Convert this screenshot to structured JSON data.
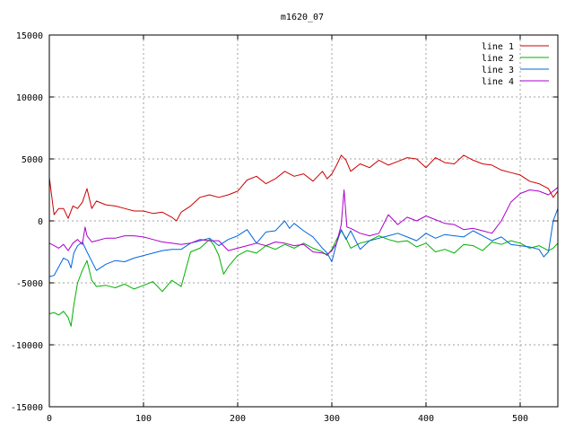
{
  "chart_data": {
    "type": "line",
    "title": "m1620_07",
    "xlabel": "",
    "ylabel": "",
    "xlim": [
      0,
      540
    ],
    "ylim": [
      -15000,
      15000
    ],
    "xticks": [
      0,
      100,
      200,
      300,
      400,
      500
    ],
    "yticks": [
      -15000,
      -10000,
      -5000,
      0,
      5000,
      10000,
      15000
    ],
    "grid": true,
    "legend_position": "top-right",
    "series": [
      {
        "name": "line 1",
        "color": "#cc0000",
        "x": [
          0,
          5,
          10,
          15,
          20,
          25,
          30,
          35,
          40,
          45,
          50,
          60,
          70,
          80,
          90,
          100,
          110,
          120,
          130,
          135,
          140,
          150,
          160,
          170,
          180,
          190,
          200,
          210,
          220,
          230,
          240,
          250,
          260,
          270,
          280,
          290,
          295,
          300,
          305,
          310,
          315,
          320,
          330,
          340,
          350,
          360,
          370,
          380,
          390,
          400,
          410,
          420,
          430,
          440,
          450,
          460,
          470,
          480,
          490,
          500,
          510,
          520,
          530,
          535,
          540
        ],
        "values": [
          3500,
          500,
          1000,
          1000,
          200,
          1200,
          1000,
          1500,
          2600,
          1000,
          1600,
          1300,
          1200,
          1000,
          800,
          800,
          600,
          700,
          300,
          0,
          700,
          1200,
          1900,
          2100,
          1900,
          2100,
          2400,
          3300,
          3600,
          3000,
          3400,
          4000,
          3600,
          3800,
          3200,
          4000,
          3400,
          3800,
          4500,
          5300,
          4900,
          4000,
          4600,
          4300,
          4900,
          4500,
          4800,
          5100,
          5000,
          4300,
          5100,
          4700,
          4600,
          5300,
          4900,
          4600,
          4500,
          4100,
          3900,
          3700,
          3200,
          3000,
          2600,
          1900,
          2400
        ]
      },
      {
        "name": "line 2",
        "color": "#00b000",
        "x": [
          0,
          5,
          10,
          15,
          20,
          23,
          26,
          30,
          35,
          40,
          45,
          50,
          60,
          70,
          80,
          90,
          100,
          110,
          120,
          130,
          140,
          150,
          160,
          170,
          175,
          180,
          185,
          190,
          200,
          210,
          220,
          230,
          240,
          250,
          260,
          270,
          280,
          290,
          295,
          300,
          305,
          310,
          315,
          320,
          330,
          340,
          350,
          360,
          370,
          380,
          390,
          400,
          410,
          420,
          430,
          440,
          450,
          460,
          470,
          480,
          490,
          500,
          510,
          520,
          530,
          535,
          540
        ],
        "values": [
          -7500,
          -7400,
          -7600,
          -7300,
          -7800,
          -8500,
          -6800,
          -5000,
          -4000,
          -3200,
          -4800,
          -5300,
          -5200,
          -5400,
          -5100,
          -5500,
          -5200,
          -4900,
          -5700,
          -4800,
          -5300,
          -2500,
          -2200,
          -1500,
          -2000,
          -2800,
          -4300,
          -3700,
          -2800,
          -2400,
          -2600,
          -2000,
          -2300,
          -1900,
          -2200,
          -1800,
          -2200,
          -2500,
          -2800,
          -2300,
          -1500,
          -800,
          -1400,
          -2200,
          -1800,
          -1600,
          -1200,
          -1500,
          -1700,
          -1600,
          -2100,
          -1800,
          -2500,
          -2300,
          -2600,
          -1900,
          -2000,
          -2400,
          -1700,
          -1900,
          -1600,
          -1800,
          -2200,
          -2000,
          -2400,
          -2200,
          -1800
        ]
      },
      {
        "name": "line 3",
        "color": "#0066dd",
        "x": [
          0,
          5,
          10,
          15,
          20,
          23,
          26,
          30,
          35,
          40,
          50,
          60,
          70,
          80,
          90,
          100,
          110,
          120,
          130,
          140,
          150,
          160,
          170,
          180,
          190,
          200,
          210,
          220,
          230,
          240,
          250,
          255,
          260,
          270,
          280,
          290,
          295,
          300,
          305,
          310,
          315,
          320,
          330,
          340,
          350,
          360,
          370,
          380,
          390,
          400,
          410,
          420,
          430,
          440,
          450,
          460,
          470,
          480,
          490,
          500,
          510,
          520,
          525,
          530,
          535,
          540
        ],
        "values": [
          -4500,
          -4400,
          -3700,
          -3000,
          -3200,
          -3800,
          -2600,
          -2000,
          -1700,
          -2500,
          -4000,
          -3500,
          -3200,
          -3300,
          -3000,
          -2800,
          -2600,
          -2400,
          -2300,
          -2300,
          -1800,
          -1600,
          -1400,
          -2000,
          -1500,
          -1200,
          -700,
          -1800,
          -900,
          -800,
          0,
          -600,
          -200,
          -800,
          -1300,
          -2200,
          -2600,
          -3300,
          -1800,
          -700,
          -1500,
          -800,
          -2300,
          -1600,
          -1400,
          -1200,
          -1000,
          -1300,
          -1600,
          -1000,
          -1400,
          -1100,
          -1200,
          -1300,
          -800,
          -1200,
          -1600,
          -1300,
          -1900,
          -2000,
          -2100,
          -2300,
          -2900,
          -2500,
          0,
          1000
        ]
      },
      {
        "name": "line 4",
        "color": "#aa00cc",
        "x": [
          0,
          5,
          10,
          15,
          20,
          25,
          30,
          35,
          38,
          40,
          45,
          50,
          60,
          70,
          80,
          90,
          100,
          110,
          120,
          130,
          140,
          150,
          160,
          170,
          180,
          190,
          200,
          210,
          220,
          230,
          240,
          250,
          260,
          270,
          280,
          290,
          295,
          300,
          305,
          310,
          313,
          316,
          320,
          330,
          340,
          350,
          360,
          370,
          380,
          390,
          400,
          410,
          420,
          430,
          440,
          450,
          460,
          470,
          480,
          490,
          500,
          510,
          520,
          530,
          540
        ],
        "values": [
          -1800,
          -2000,
          -2200,
          -1900,
          -2400,
          -1800,
          -1500,
          -1900,
          -500,
          -1200,
          -1700,
          -1600,
          -1400,
          -1400,
          -1200,
          -1200,
          -1300,
          -1500,
          -1700,
          -1800,
          -1900,
          -1800,
          -1500,
          -1600,
          -1600,
          -2400,
          -2200,
          -2000,
          -1800,
          -2000,
          -1700,
          -1800,
          -2000,
          -1900,
          -2500,
          -2600,
          -2700,
          -2400,
          -1800,
          -300,
          2500,
          -500,
          -600,
          -1000,
          -1200,
          -1000,
          500,
          -300,
          300,
          0,
          400,
          100,
          -200,
          -300,
          -700,
          -600,
          -800,
          -1000,
          0,
          1500,
          2200,
          2500,
          2400,
          2100,
          2700
        ]
      }
    ]
  }
}
